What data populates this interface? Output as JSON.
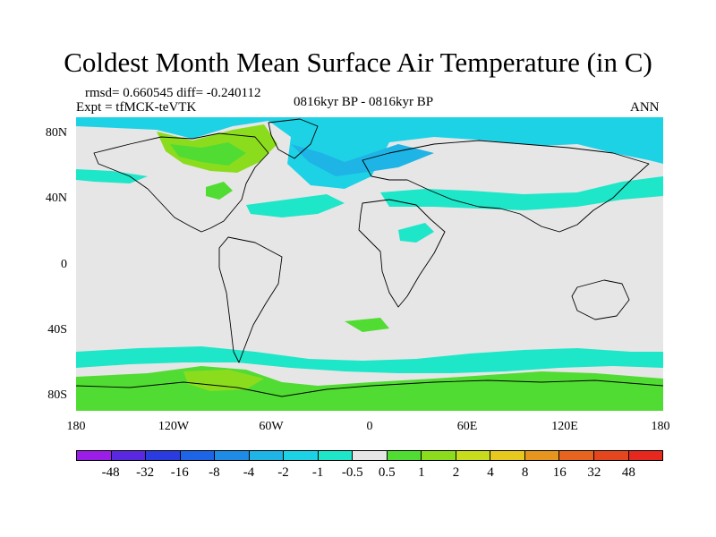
{
  "title": "Coldest Month Mean Surface Air Temperature (in C)",
  "stats_line": "rmsd= 0.660545 diff= -0.240112",
  "experiment": "Expt = tfMCK-teVTK",
  "period": "0816kyr BP - 0816kyr BP",
  "season": "ANN",
  "lat_labels": [
    "80N",
    "40N",
    "0",
    "40S",
    "80S"
  ],
  "lon_labels": [
    "180",
    "120W",
    "60W",
    "0",
    "60E",
    "120E",
    "180"
  ],
  "colors": {
    "background_gray": "#e6e6e6",
    "coast": "#000000"
  },
  "colorbar": {
    "labels": [
      "-48",
      "-32",
      "-16",
      "-8",
      "-4",
      "-2",
      "-1",
      "-0.5",
      "0.5",
      "1",
      "2",
      "4",
      "8",
      "16",
      "32",
      "48"
    ],
    "colors": [
      "#9a1ee8",
      "#5a28e0",
      "#2a3ce0",
      "#1e64e6",
      "#1e8ce6",
      "#1eb4e6",
      "#1ed2e6",
      "#1ee6c8",
      "#e6e6e6",
      "#50dc32",
      "#8cdc1e",
      "#c8dc1e",
      "#e6c81e",
      "#e6961e",
      "#e6641e",
      "#e6461e",
      "#e6281e"
    ]
  },
  "chart_data": {
    "type": "heatmap",
    "map_type": "global lat-lon difference map",
    "title": "Coldest Month Mean Surface Air Temperature (in C)",
    "lon_range": [
      -180,
      180
    ],
    "lat_range": [
      -90,
      90
    ],
    "contour_levels": [
      -48,
      -32,
      -16,
      -8,
      -4,
      -2,
      -1,
      -0.5,
      0.5,
      1,
      2,
      4,
      8,
      16,
      32,
      48
    ],
    "regions_visible": [
      {
        "area": "Arctic Ocean / North Atlantic / northern Eurasia",
        "value_range": [
          -2,
          -1
        ]
      },
      {
        "area": "Canadian Arctic Archipelago and Hudson Bay",
        "value_range": [
          1,
          2
        ]
      },
      {
        "area": "North Pacific and northern Asia belt",
        "value_range": [
          -1,
          -0.5
        ]
      },
      {
        "area": "Southern Ocean ring",
        "value_range": [
          -1,
          -0.5
        ]
      },
      {
        "area": "Antarctic coast",
        "value_range": [
          0.5,
          2
        ]
      },
      {
        "area": "tropics and mid-latitudes",
        "value_range": [
          -0.5,
          0.5
        ]
      }
    ]
  }
}
